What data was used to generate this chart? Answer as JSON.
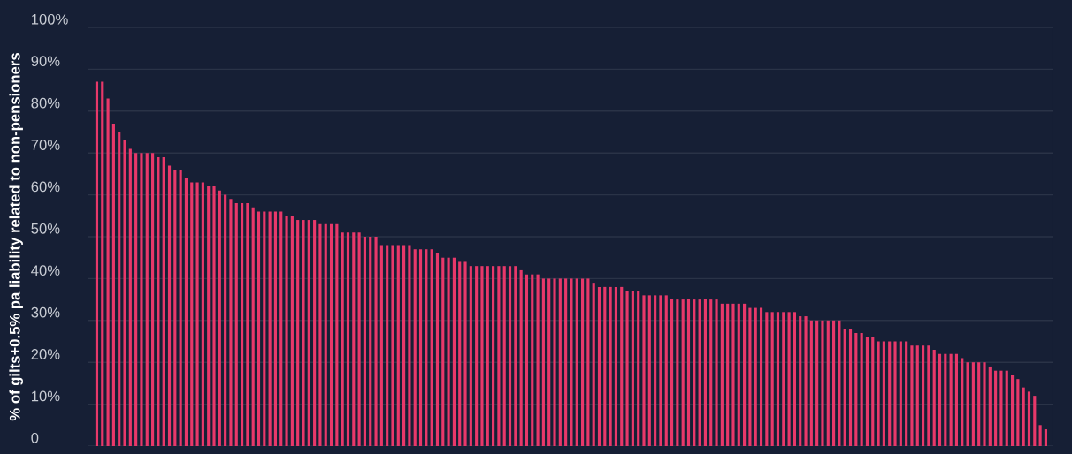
{
  "chart_data": {
    "type": "bar",
    "ylabel": "% of gilts+0.5% pa liability related to non-pensioners",
    "categories": [
      null,
      null,
      null,
      null,
      null,
      null,
      null,
      null,
      null,
      null,
      null,
      null,
      null,
      null,
      null,
      null,
      null,
      null,
      null,
      null,
      null,
      null,
      null,
      null,
      null,
      null,
      null,
      null,
      null,
      null,
      null,
      null,
      null,
      null,
      null,
      null,
      null,
      null,
      null,
      null,
      null,
      null,
      null,
      null,
      null,
      null,
      null,
      null,
      null,
      null,
      null,
      null,
      null,
      null,
      null,
      null,
      null,
      null,
      null,
      null,
      null,
      null,
      null,
      null,
      null,
      null,
      null,
      null,
      null,
      null,
      null,
      null,
      null,
      null,
      null,
      null,
      null,
      null,
      null,
      null,
      null,
      null,
      null,
      null,
      null,
      null,
      null,
      null,
      null,
      null,
      null,
      null,
      null,
      null,
      null,
      null,
      null,
      null,
      null,
      null,
      null,
      null,
      null,
      null,
      null,
      null,
      null,
      null,
      null,
      null,
      null,
      null,
      null,
      null,
      null,
      null,
      null,
      null,
      null,
      null,
      null,
      null,
      null,
      null,
      null,
      null,
      null,
      null,
      null,
      null,
      null,
      null,
      null,
      null,
      null,
      null,
      null,
      null,
      null,
      null,
      null,
      null,
      null,
      null,
      null,
      null,
      null,
      null,
      null,
      null,
      null,
      null,
      null,
      null,
      null,
      null,
      null,
      null,
      null,
      null,
      null,
      null,
      null,
      null,
      null,
      null,
      null,
      null,
      null,
      null,
      null
    ],
    "values": [
      87,
      87,
      83,
      77,
      75,
      73,
      71,
      70,
      70,
      70,
      70,
      69,
      69,
      67,
      66,
      66,
      64,
      63,
      63,
      63,
      62,
      62,
      61,
      60,
      59,
      58,
      58,
      58,
      57,
      56,
      56,
      56,
      56,
      56,
      55,
      55,
      54,
      54,
      54,
      54,
      53,
      53,
      53,
      53,
      51,
      51,
      51,
      51,
      50,
      50,
      50,
      48,
      48,
      48,
      48,
      48,
      48,
      47,
      47,
      47,
      47,
      46,
      45,
      45,
      45,
      44,
      44,
      43,
      43,
      43,
      43,
      43,
      43,
      43,
      43,
      43,
      42,
      41,
      41,
      41,
      40,
      40,
      40,
      40,
      40,
      40,
      40,
      40,
      40,
      39,
      38,
      38,
      38,
      38,
      38,
      37,
      37,
      37,
      36,
      36,
      36,
      36,
      36,
      35,
      35,
      35,
      35,
      35,
      35,
      35,
      35,
      35,
      34,
      34,
      34,
      34,
      34,
      33,
      33,
      33,
      32,
      32,
      32,
      32,
      32,
      32,
      31,
      31,
      30,
      30,
      30,
      30,
      30,
      30,
      28,
      28,
      27,
      27,
      26,
      26,
      25,
      25,
      25,
      25,
      25,
      25,
      24,
      24,
      24,
      24,
      23,
      22,
      22,
      22,
      22,
      21,
      20,
      20,
      20,
      20,
      19,
      18,
      18,
      18,
      17,
      16,
      14,
      13,
      12,
      5,
      4
    ],
    "color": "#e8386a",
    "ylim": [
      0,
      100
    ],
    "yticks": [
      0,
      {
        "value": 10,
        "label": "10%"
      },
      {
        "value": 20,
        "label": "20%"
      },
      {
        "value": 30,
        "label": "30%"
      },
      {
        "value": 40,
        "label": "40%"
      },
      {
        "value": 50,
        "label": "50%"
      },
      {
        "value": 60,
        "label": "60%"
      },
      {
        "value": 70,
        "label": "70%"
      },
      {
        "value": 80,
        "label": "80%"
      },
      {
        "value": 90,
        "label": "90%"
      },
      {
        "value": 100,
        "label": "100%"
      }
    ],
    "grid": "y",
    "tick_labels": "y"
  }
}
